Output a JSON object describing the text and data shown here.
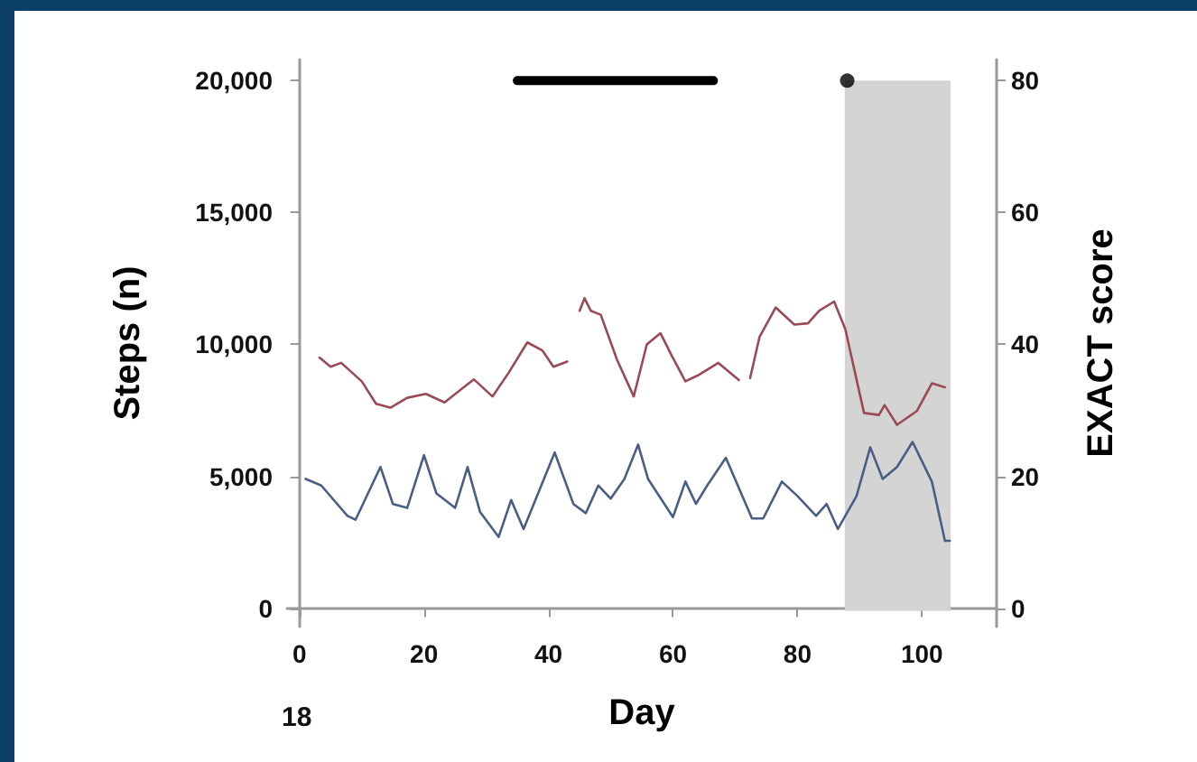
{
  "chart_data": {
    "type": "line",
    "xlabel": "Day",
    "ylabel": "Steps (n)",
    "y2label": "EXACT score",
    "annotations": [
      "18"
    ],
    "xlim": [
      -2,
      112
    ],
    "xticks": [
      0,
      20,
      40,
      60,
      80,
      100
    ],
    "ylim": [
      -700,
      20800
    ],
    "yticks": [
      0,
      {
        "value": 5000,
        "label": "5,000"
      },
      {
        "value": 10000,
        "label": "10,000"
      },
      {
        "value": 15000,
        "label": "15,000"
      },
      {
        "value": 20000,
        "label": "20,000"
      }
    ],
    "y2lim": [
      -2.8,
      83.2
    ],
    "y2ticks": [
      0,
      20,
      40,
      60,
      80
    ],
    "grid": false,
    "marker": "none",
    "line_style": "solid",
    "bands": [
      {
        "axis": "x",
        "from": 87.6,
        "to": 104.6,
        "color": "#d4d4d4"
      }
    ],
    "series": [
      {
        "color": "#4a5e85",
        "x": [
          1,
          3.5,
          7.7,
          9,
          13,
          15,
          17.3,
          20,
          22,
          25,
          27,
          29,
          32,
          34,
          36,
          41,
          44,
          46,
          48,
          50,
          52.2,
          54.4,
          56,
          60,
          62,
          63.7,
          65.5,
          68.5,
          72.7,
          74.5,
          77.5,
          80,
          83,
          84.7,
          86.5,
          89.5,
          91.7,
          93.7,
          96,
          98.5,
          101.6,
          103.7,
          104.5
        ],
        "values": [
          4900,
          4650,
          3500,
          3350,
          5350,
          3950,
          3800,
          5800,
          4350,
          3800,
          5350,
          3650,
          2700,
          4100,
          3000,
          5900,
          3950,
          3600,
          4650,
          4150,
          4900,
          6200,
          4900,
          3450,
          4800,
          3950,
          4650,
          5700,
          3400,
          3400,
          4800,
          4250,
          3500,
          3950,
          3000,
          4250,
          6100,
          4900,
          5350,
          6300,
          4800,
          2550,
          2550
        ]
      },
      {
        "color": "#9a4a55",
        "axis": "y2",
        "x": [
          3.2,
          5,
          6.7,
          10,
          12.3,
          14.6,
          17.3,
          20.3,
          23.3,
          28,
          31,
          33.6,
          36.6,
          39,
          40.8,
          43,
          44,
          45,
          45.8,
          46.8,
          48.4,
          51,
          53.7,
          55.8,
          58,
          59.8,
          62,
          64,
          67.3,
          70.6,
          71.5,
          72.4,
          73.9,
          76.5,
          79.5,
          81.7,
          83.5,
          85.9,
          87.7,
          90.7,
          93.1,
          94,
          96,
          99.2,
          101.6,
          103.7
        ],
        "values": [
          38,
          36.6,
          37.2,
          34.4,
          31,
          30.4,
          31.9,
          32.5,
          31.2,
          34.7,
          32.1,
          35.7,
          40.3,
          39.1,
          36.6,
          37.4,
          null,
          45.1,
          47,
          45.1,
          44.5,
          37.7,
          32.1,
          40,
          41.7,
          38.3,
          34.4,
          35.3,
          37.2,
          34.6,
          null,
          34.9,
          41.1,
          45.6,
          43,
          43.2,
          45.1,
          46.5,
          42.3,
          29.6,
          29.3,
          30.8,
          27.8,
          29.9,
          34.1,
          33.5
        ]
      },
      {
        "color": "#000000",
        "x": [
          35,
          66.5
        ],
        "values": [
          20000,
          20000
        ]
      },
      {
        "type": "scatter",
        "marker": "circle",
        "color": "#000000",
        "x": [
          88
        ],
        "values": [
          20000
        ]
      }
    ]
  }
}
